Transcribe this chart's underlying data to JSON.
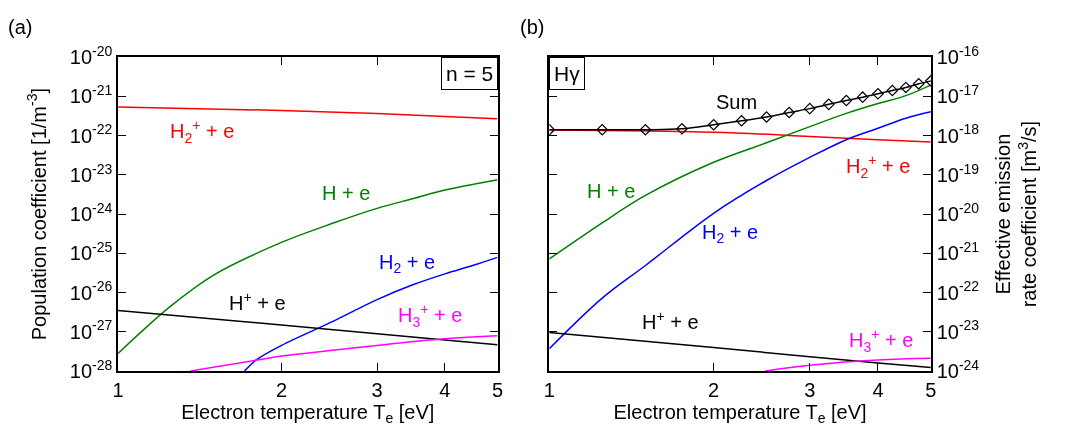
{
  "chart_data": [
    {
      "type": "line",
      "title": "(a)",
      "xlabel": "Electron temperature T$_{e}$ [eV]",
      "ylabel": "Population coefficient [1/m$^{-3}$]",
      "log": "xy",
      "marker": "none",
      "line_style": "solid",
      "xlim": [
        1,
        5
      ],
      "xticks": [
        1,
        2,
        3,
        4,
        5
      ],
      "ylim": [
        1e-28,
        1e-20
      ],
      "yticks": [
        {
          "value": 1e-28,
          "label": "10$^{-28}$"
        },
        {
          "value": 1e-27,
          "label": "10$^{-27}$"
        },
        {
          "value": 1e-26,
          "label": "10$^{-26}$"
        },
        {
          "value": 1e-25,
          "label": "10$^{-25}$"
        },
        {
          "value": 1e-24,
          "label": "10$^{-24}$"
        },
        {
          "value": 1e-23,
          "label": "10$^{-23}$"
        },
        {
          "value": 1e-22,
          "label": "10$^{-22}$"
        },
        {
          "value": 1e-21,
          "label": "10$^{-21}$"
        },
        {
          "value": 1e-20,
          "label": "10$^{-20}$"
        }
      ],
      "annotations": [
        "n = 5"
      ],
      "series": [
        {
          "name": "H$_{2}$$^{+}$ + e",
          "color": "#ff0000",
          "x": [
            1,
            2,
            3,
            4,
            5
          ],
          "values": [
            5.4e-22,
            4.4e-22,
            3.7e-22,
            3.1e-22,
            2.7e-22
          ]
        },
        {
          "name": "H + e",
          "color": "#008000",
          "x": [
            1,
            1.25,
            1.5,
            2,
            2.5,
            3,
            3.5,
            4,
            4.5,
            5
          ],
          "values": [
            2.8e-28,
            4.5e-27,
            2.8e-26,
            1.9e-25,
            6e-25,
            1.4e-24,
            2.5e-24,
            4.1e-24,
            5.7e-24,
            7.5e-24
          ]
        },
        {
          "name": "H$_{2}$ + e",
          "color": "#0000ff",
          "x": [
            1.71,
            1.8,
            2,
            2.5,
            3,
            3.5,
            4,
            4.5,
            5
          ],
          "values": [
            1e-28,
            1.95e-28,
            4.5e-28,
            1.9e-27,
            6.6e-27,
            1.6e-26,
            3e-26,
            4.9e-26,
            7.9e-26
          ]
        },
        {
          "name": "H$^{+}$ + e",
          "color": "#000000",
          "x": [
            1,
            2,
            3,
            4,
            5
          ],
          "values": [
            3.5e-27,
            1.5e-27,
            8.9e-28,
            6.2e-28,
            4.7e-28
          ]
        },
        {
          "name": "H$_{3}$$^{+}$ + e",
          "color": "#ff00ff",
          "x": [
            1.36,
            1.8,
            2,
            3,
            4,
            5
          ],
          "values": [
            1e-28,
            1.9e-28,
            2.4e-28,
            4.5e-28,
            6.6e-28,
            7.9e-28
          ]
        }
      ]
    },
    {
      "type": "line",
      "title": "(b)",
      "xlabel": "Electron temperature T$_{e}$ [eV]",
      "ylabel": "Effective emission\nrate coefficient [m$^{3}$/s]",
      "log": "xy",
      "marker": "none",
      "line_style": "solid",
      "xlim": [
        1,
        5
      ],
      "xticks": [
        1,
        2,
        3,
        4,
        5
      ],
      "ylim": [
        1e-24,
        1e-16
      ],
      "yticks": [
        {
          "value": 1e-24,
          "label": "10$^{-24}$"
        },
        {
          "value": 1e-23,
          "label": "10$^{-23}$"
        },
        {
          "value": 1e-22,
          "label": "10$^{-22}$"
        },
        {
          "value": 1e-21,
          "label": "10$^{-21}$"
        },
        {
          "value": 1e-20,
          "label": "10$^{-20}$"
        },
        {
          "value": 1e-19,
          "label": "10$^{-19}$"
        },
        {
          "value": 1e-18,
          "label": "10$^{-18}$"
        },
        {
          "value": 1e-17,
          "label": "10$^{-17}$"
        },
        {
          "value": 1e-16,
          "label": "10$^{-16}$"
        }
      ],
      "annotations": [
        "Hγ"
      ],
      "series": [
        {
          "name": "H$_{2}$$^{+}$ + e",
          "color": "#ff0000",
          "x": [
            1,
            2,
            3,
            4,
            5
          ],
          "values": [
            1.4e-18,
            1.23e-18,
            9.6e-19,
            7.9e-19,
            6.9e-19
          ]
        },
        {
          "name": "H + e",
          "color": "#008000",
          "x": [
            1,
            1.25,
            1.5,
            2,
            2.5,
            3,
            3.5,
            4,
            4.5,
            5
          ],
          "values": [
            7.2e-22,
            6e-21,
            3e-20,
            2.1e-19,
            6.6e-19,
            1.7e-18,
            3.7e-18,
            6.6e-18,
            1.05e-17,
            1.95e-17
          ]
        },
        {
          "name": "H$_{2}$ + e",
          "color": "#0000ff",
          "x": [
            1,
            1.25,
            1.5,
            2,
            2.5,
            3,
            3.5,
            4,
            4.5,
            5
          ],
          "values": [
            3.7e-24,
            7.2e-23,
            4.9e-22,
            1.05e-20,
            7.2e-20,
            2.8e-19,
            7.9e-19,
            1.55e-18,
            2.8e-18,
            4.1e-18
          ]
        },
        {
          "name": "H$^{+}$ + e",
          "color": "#000000",
          "x": [
            1,
            2,
            3,
            4,
            5
          ],
          "values": [
            9.6e-24,
            4e-24,
            2.3e-24,
            1.6e-24,
            1.23e-24
          ]
        },
        {
          "name": "H$_{3}$$^{+}$ + e",
          "color": "#ff00ff",
          "x": [
            2.49,
            3,
            4,
            5
          ],
          "values": [
            1e-24,
            1.4e-24,
            1.9e-24,
            2.1e-24
          ]
        },
        {
          "name": "Sum",
          "color": "#000000",
          "marker": "diamond",
          "x": [
            1,
            1.25,
            1.5,
            1.75,
            2,
            2.25,
            2.5,
            2.75,
            3,
            3.25,
            3.5,
            3.75,
            4,
            4.25,
            4.5,
            4.75,
            5
          ],
          "values": [
            1.42e-18,
            1.42e-18,
            1.42e-18,
            1.5e-18,
            1.9e-18,
            2.4e-18,
            3e-18,
            3.9e-18,
            4.9e-18,
            6.3e-18,
            7.9e-18,
            9.6e-18,
            1.17e-17,
            1.42e-17,
            1.7e-17,
            2.1e-17,
            2.5e-17
          ]
        }
      ]
    }
  ]
}
